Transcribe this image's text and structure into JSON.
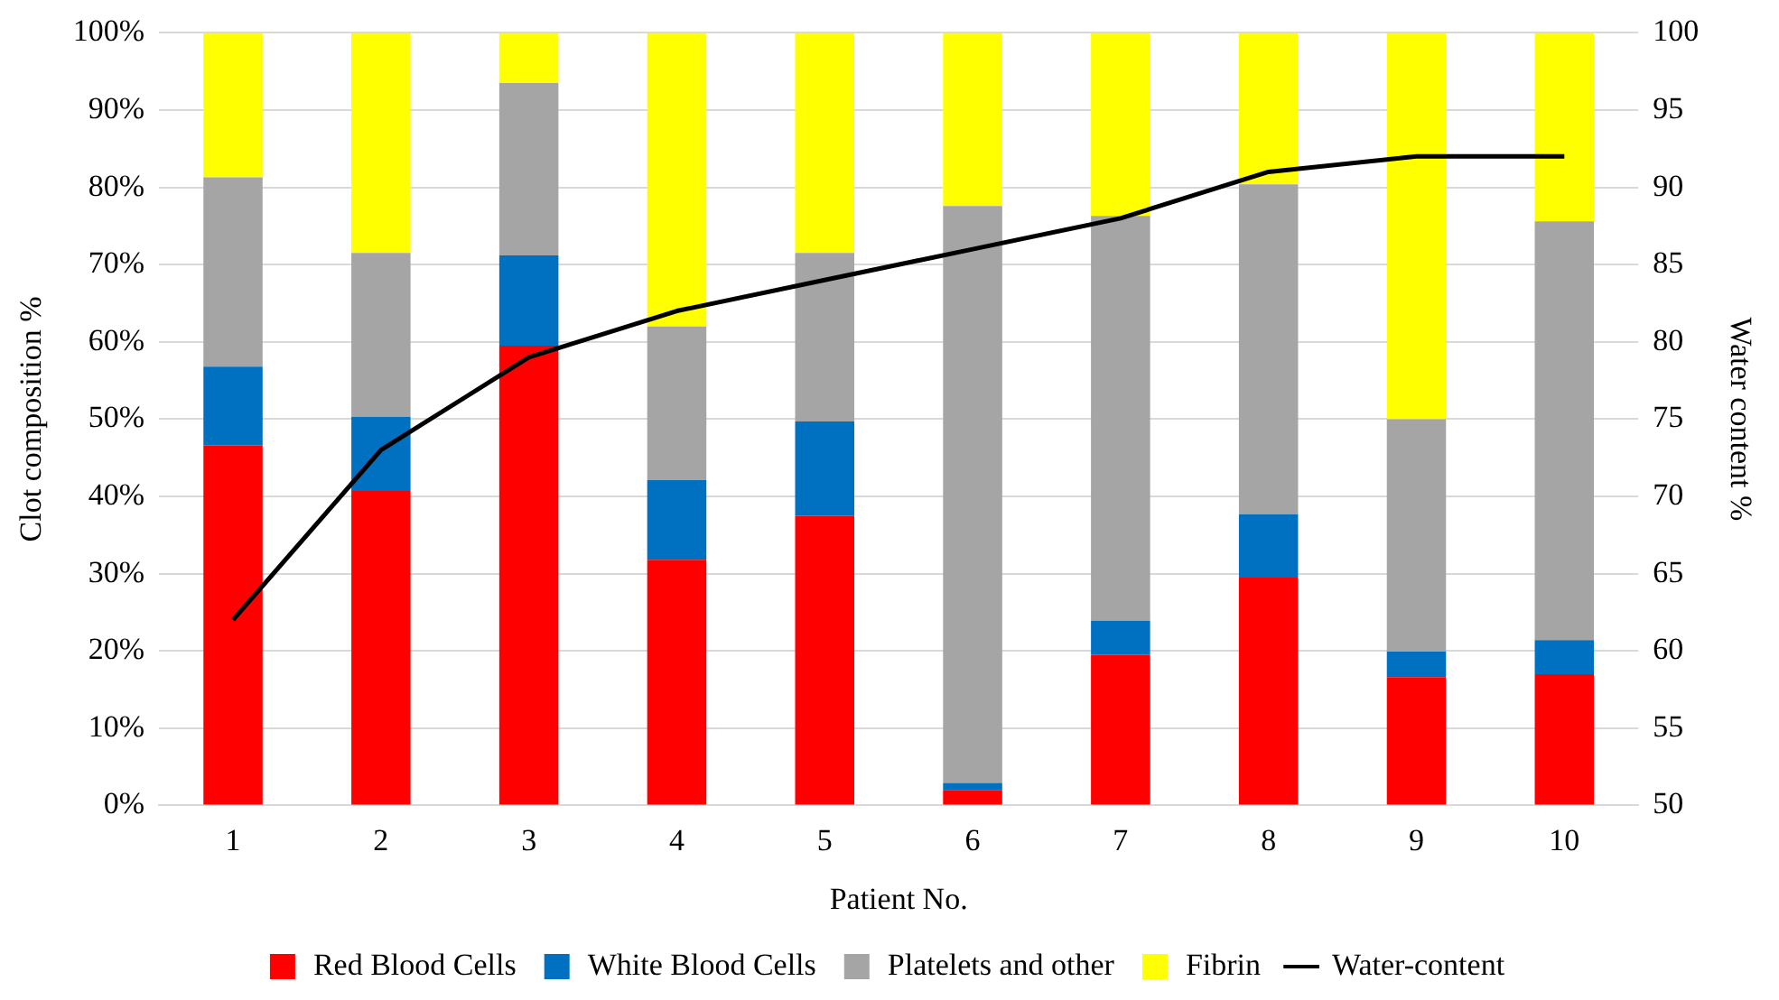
{
  "chart_data": {
    "type": "bar",
    "stacked": true,
    "xlabel": "Patient No.",
    "ylabel": "Clot composition %",
    "y2label": "Water content %",
    "categories": [
      "1",
      "2",
      "3",
      "4",
      "5",
      "6",
      "7",
      "8",
      "9",
      "10"
    ],
    "series": [
      {
        "name": "Red Blood Cells",
        "color": "#ff0000",
        "values": [
          46.6,
          40.7,
          59.5,
          31.8,
          37.5,
          2.0,
          19.5,
          29.5,
          16.6,
          17.0
        ]
      },
      {
        "name": "White Blood Cells",
        "color": "#0070c0",
        "values": [
          10.2,
          9.6,
          11.7,
          10.3,
          12.2,
          0.9,
          4.4,
          8.2,
          3.3,
          4.4
        ]
      },
      {
        "name": "Platelets and other",
        "color": "#a5a5a5",
        "values": [
          24.5,
          21.2,
          22.3,
          19.9,
          21.8,
          74.7,
          52.4,
          42.7,
          30.1,
          54.2
        ]
      },
      {
        "name": "Fibrin",
        "color": "#ffff00",
        "values": [
          18.7,
          28.5,
          6.5,
          38.0,
          28.5,
          22.4,
          23.7,
          19.6,
          50.0,
          24.4
        ]
      },
      {
        "name": "Water-content",
        "type": "line",
        "axis": "y2",
        "color": "#000000",
        "values": [
          62,
          73,
          79,
          82,
          84,
          86,
          88,
          91,
          92,
          92
        ]
      }
    ],
    "ylim": [
      0,
      100
    ],
    "yticks": [
      {
        "value": 0,
        "label": "0%"
      },
      {
        "value": 10,
        "label": "10%"
      },
      {
        "value": 20,
        "label": "20%"
      },
      {
        "value": 30,
        "label": "30%"
      },
      {
        "value": 40,
        "label": "40%"
      },
      {
        "value": 50,
        "label": "50%"
      },
      {
        "value": 60,
        "label": "60%"
      },
      {
        "value": 70,
        "label": "70%"
      },
      {
        "value": 80,
        "label": "80%"
      },
      {
        "value": 90,
        "label": "90%"
      },
      {
        "value": 100,
        "label": "100%"
      }
    ],
    "y2lim": [
      50,
      100
    ],
    "y2ticks": [
      50,
      55,
      60,
      65,
      70,
      75,
      80,
      85,
      90,
      95,
      100
    ],
    "grid": "y",
    "legend": "bottom",
    "marker": "none",
    "line_style": "solid"
  }
}
